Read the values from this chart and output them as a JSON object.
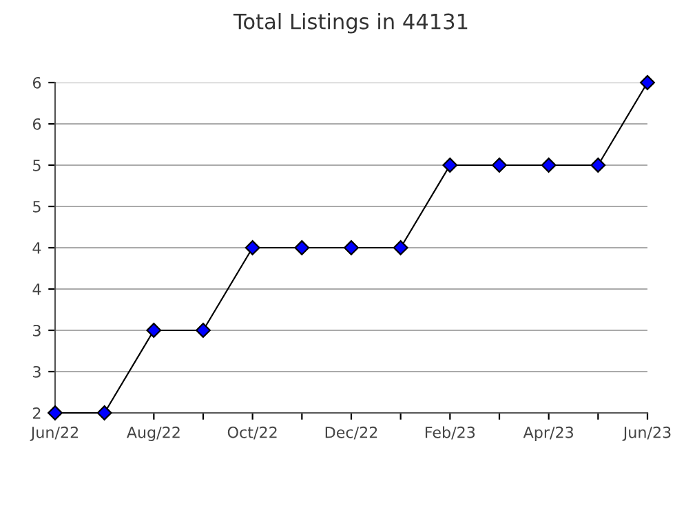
{
  "chart_data": {
    "type": "line",
    "title": "Total Listings in 44131",
    "categories": [
      "Jun/22",
      null,
      "Aug/22",
      null,
      "Oct/22",
      null,
      "Dec/22",
      null,
      "Feb/23",
      null,
      "Apr/23",
      null,
      "Jun/23"
    ],
    "series": [
      {
        "color": "#0000ff",
        "values": [
          2,
          2,
          3,
          3,
          4,
          4,
          4,
          4,
          5,
          5,
          5,
          5,
          6
        ]
      }
    ],
    "ylim": [
      2,
      6
    ],
    "yticks": [
      2,
      {
        "value": 2.5,
        "label": "3"
      },
      3,
      {
        "value": 3.5,
        "label": "4"
      },
      4,
      {
        "value": 4.5,
        "label": "5"
      },
      5,
      {
        "value": 5.5,
        "label": "6"
      },
      6
    ],
    "grid": "y",
    "marker": "diamond",
    "line_style": "solid",
    "legend": false
  }
}
